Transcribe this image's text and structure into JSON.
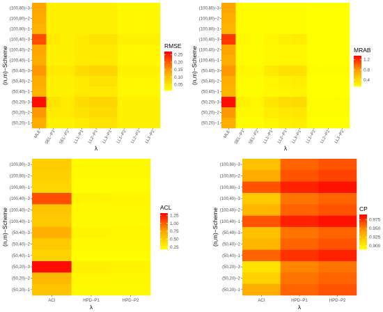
{
  "chart_data": [
    {
      "type": "heatmap",
      "xlabel": "λ",
      "ylabel": "(n,m)−Scheme",
      "legend_title": "RMSE",
      "legend_ticks": [
        0.05,
        0.1,
        0.15,
        0.2,
        0.25
      ],
      "legend_tick_labels": [
        "0.05",
        "0.10",
        "0.15",
        "0.20",
        "0.25"
      ],
      "legend_range": [
        0.01,
        0.27
      ],
      "x_categories": [
        "MLE",
        "SEL−P1",
        "SEL−P2",
        "LL1−P1",
        "LL2−P1",
        "LL3−P1",
        "LL1−P2",
        "LL2−P2",
        "LL3−P2"
      ],
      "y_categories": [
        "(100,80)−3",
        "(100,80)−2",
        "(100,80)−1",
        "(100,40)−3",
        "(100,40)−2",
        "(100,40)−1",
        "(50,40)−3",
        "(50,40)−2",
        "(50,40)−1",
        "(50,20)−3",
        "(50,20)−2",
        "(50,20)−1"
      ],
      "values": [
        [
          0.14,
          0.03,
          0.03,
          0.03,
          0.03,
          0.03,
          0.02,
          0.02,
          0.02
        ],
        [
          0.13,
          0.03,
          0.03,
          0.03,
          0.03,
          0.03,
          0.02,
          0.02,
          0.02
        ],
        [
          0.12,
          0.03,
          0.03,
          0.03,
          0.03,
          0.03,
          0.02,
          0.02,
          0.02
        ],
        [
          0.21,
          0.04,
          0.03,
          0.04,
          0.05,
          0.05,
          0.03,
          0.03,
          0.03
        ],
        [
          0.14,
          0.03,
          0.03,
          0.04,
          0.04,
          0.04,
          0.02,
          0.02,
          0.02
        ],
        [
          0.13,
          0.03,
          0.03,
          0.04,
          0.04,
          0.04,
          0.02,
          0.02,
          0.02
        ],
        [
          0.15,
          0.04,
          0.04,
          0.06,
          0.07,
          0.07,
          0.03,
          0.03,
          0.03
        ],
        [
          0.13,
          0.03,
          0.03,
          0.04,
          0.05,
          0.05,
          0.02,
          0.02,
          0.02
        ],
        [
          0.12,
          0.03,
          0.03,
          0.04,
          0.04,
          0.04,
          0.02,
          0.02,
          0.02
        ],
        [
          0.26,
          0.05,
          0.04,
          0.06,
          0.07,
          0.07,
          0.03,
          0.03,
          0.03
        ],
        [
          0.15,
          0.04,
          0.04,
          0.05,
          0.06,
          0.06,
          0.03,
          0.03,
          0.03
        ],
        [
          0.13,
          0.03,
          0.03,
          0.04,
          0.05,
          0.05,
          0.03,
          0.03,
          0.03
        ]
      ]
    },
    {
      "type": "heatmap",
      "xlabel": "λ",
      "ylabel": "(n,m)−Scheme",
      "legend_title": "MRAB",
      "legend_ticks": [
        0.4,
        0.8,
        1.2
      ],
      "legend_tick_labels": [
        "0.4",
        "0.8",
        "1.2"
      ],
      "legend_range": [
        0.15,
        1.35
      ],
      "x_categories": [
        "MLE",
        "SEL−P1",
        "SEL−P2",
        "LL1−P1",
        "LL2−P1",
        "LL3−P1",
        "LL1−P2",
        "LL2−P2",
        "LL3−P2"
      ],
      "y_categories": [
        "(100,80)−3",
        "(100,80)−2",
        "(100,80)−1",
        "(100,40)−3",
        "(100,40)−2",
        "(100,40)−1",
        "(50,40)−3",
        "(50,40)−2",
        "(50,40)−1",
        "(50,20)−3",
        "(50,20)−2",
        "(50,20)−1"
      ],
      "values": [
        [
          0.75,
          0.17,
          0.17,
          0.18,
          0.18,
          0.18,
          0.15,
          0.15,
          0.15
        ],
        [
          0.7,
          0.17,
          0.17,
          0.18,
          0.18,
          0.18,
          0.15,
          0.15,
          0.15
        ],
        [
          0.65,
          0.17,
          0.17,
          0.18,
          0.18,
          0.18,
          0.15,
          0.15,
          0.15
        ],
        [
          1.15,
          0.2,
          0.18,
          0.22,
          0.25,
          0.27,
          0.16,
          0.16,
          0.16
        ],
        [
          0.75,
          0.18,
          0.17,
          0.2,
          0.22,
          0.22,
          0.15,
          0.15,
          0.15
        ],
        [
          0.7,
          0.17,
          0.17,
          0.2,
          0.21,
          0.22,
          0.15,
          0.15,
          0.15
        ],
        [
          0.8,
          0.22,
          0.2,
          0.3,
          0.35,
          0.36,
          0.17,
          0.17,
          0.17
        ],
        [
          0.7,
          0.18,
          0.18,
          0.22,
          0.25,
          0.27,
          0.15,
          0.15,
          0.15
        ],
        [
          0.65,
          0.17,
          0.17,
          0.2,
          0.22,
          0.23,
          0.15,
          0.15,
          0.15
        ],
        [
          1.3,
          0.25,
          0.22,
          0.32,
          0.38,
          0.4,
          0.18,
          0.18,
          0.18
        ],
        [
          0.8,
          0.2,
          0.2,
          0.27,
          0.3,
          0.32,
          0.17,
          0.17,
          0.17
        ],
        [
          0.7,
          0.18,
          0.18,
          0.22,
          0.25,
          0.27,
          0.16,
          0.16,
          0.16
        ]
      ]
    },
    {
      "type": "heatmap",
      "xlabel": "λ",
      "ylabel": "(n,m)−Scheme",
      "legend_title": "ACL",
      "legend_ticks": [
        0.25,
        0.5,
        0.75,
        1.0,
        1.25
      ],
      "legend_tick_labels": [
        "0.25",
        "0.50",
        "0.75",
        "1.00",
        "1.25"
      ],
      "legend_range": [
        0.18,
        1.32
      ],
      "x_categories": [
        "ACI",
        "HPD−P1",
        "HPD−P2"
      ],
      "y_categories": [
        "(100,80)−3",
        "(100,80)−2",
        "(100,80)−1",
        "(100,40)−3",
        "(100,40)−2",
        "(100,40)−1",
        "(50,40)−3",
        "(50,40)−2",
        "(50,40)−1",
        "(50,20)−3",
        "(50,20)−2",
        "(50,20)−1"
      ],
      "values": [
        [
          0.5,
          0.22,
          0.22
        ],
        [
          0.48,
          0.21,
          0.21
        ],
        [
          0.44,
          0.2,
          0.2
        ],
        [
          1.05,
          0.25,
          0.24
        ],
        [
          0.55,
          0.22,
          0.22
        ],
        [
          0.52,
          0.21,
          0.21
        ],
        [
          0.68,
          0.25,
          0.24
        ],
        [
          0.52,
          0.22,
          0.22
        ],
        [
          0.46,
          0.2,
          0.2
        ],
        [
          1.28,
          0.27,
          0.25
        ],
        [
          0.63,
          0.24,
          0.23
        ],
        [
          0.56,
          0.22,
          0.22
        ]
      ]
    },
    {
      "type": "heatmap",
      "xlabel": "λ",
      "ylabel": "(n,m)−Scheme",
      "legend_title": "CP",
      "legend_ticks": [
        0.9,
        0.925,
        0.95,
        0.975
      ],
      "legend_tick_labels": [
        "0.900",
        "0.925",
        "0.950",
        "0.975"
      ],
      "legend_range": [
        0.89,
        0.99
      ],
      "x_categories": [
        "ACI",
        "HPD−P1",
        "HPD−P2"
      ],
      "y_categories": [
        "(100,80)−3",
        "(100,80)−2",
        "(100,80)−1",
        "(100,40)−3",
        "(100,40)−2",
        "(100,40)−1",
        "(50,40)−3",
        "(50,40)−2",
        "(50,40)−1",
        "(50,20)−3",
        "(50,20)−2",
        "(50,20)−1"
      ],
      "values": [
        [
          0.925,
          0.96,
          0.965
        ],
        [
          0.935,
          0.965,
          0.97
        ],
        [
          0.965,
          0.98,
          0.985
        ],
        [
          0.92,
          0.955,
          0.96
        ],
        [
          0.93,
          0.96,
          0.965
        ],
        [
          0.965,
          0.98,
          0.985
        ],
        [
          0.925,
          0.955,
          0.96
        ],
        [
          0.93,
          0.96,
          0.965
        ],
        [
          0.96,
          0.975,
          0.98
        ],
        [
          0.905,
          0.95,
          0.955
        ],
        [
          0.915,
          0.955,
          0.96
        ],
        [
          0.935,
          0.96,
          0.965
        ]
      ]
    }
  ]
}
